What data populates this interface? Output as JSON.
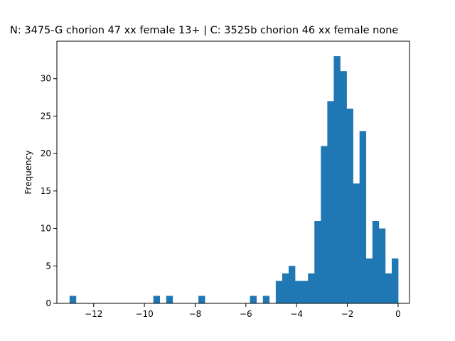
{
  "chart_data": {
    "type": "bar",
    "title": "N: 3475-G chorion 47 xx female 13+ | C: 3525b chorion 46 xx female none",
    "xlabel": "",
    "ylabel": "Frequency",
    "xlim": [
      -13.45,
      0.45
    ],
    "ylim": [
      0,
      35
    ],
    "grid": false,
    "bin_edges_start": -12.95,
    "bin_width": 0.254,
    "counts": [
      1,
      0,
      0,
      0,
      0,
      0,
      0,
      0,
      0,
      0,
      0,
      0,
      0,
      1,
      0,
      1,
      0,
      0,
      0,
      0,
      1,
      0,
      0,
      0,
      0,
      0,
      0,
      0,
      1,
      0,
      1,
      0,
      3,
      4,
      5,
      3,
      3,
      4,
      11,
      21,
      27,
      33,
      31,
      26,
      16,
      23,
      6,
      11,
      10,
      4,
      6
    ],
    "xticks": [
      -12,
      -10,
      -8,
      -6,
      -4,
      -2,
      0
    ],
    "xtick_labels": [
      "−12",
      "−10",
      "−8",
      "−6",
      "−4",
      "−2",
      "0"
    ],
    "yticks": [
      0,
      5,
      10,
      15,
      20,
      25,
      30
    ],
    "ytick_labels": [
      "0",
      "5",
      "10",
      "15",
      "20",
      "25",
      "30"
    ],
    "bar_color": "#1f77b4"
  }
}
